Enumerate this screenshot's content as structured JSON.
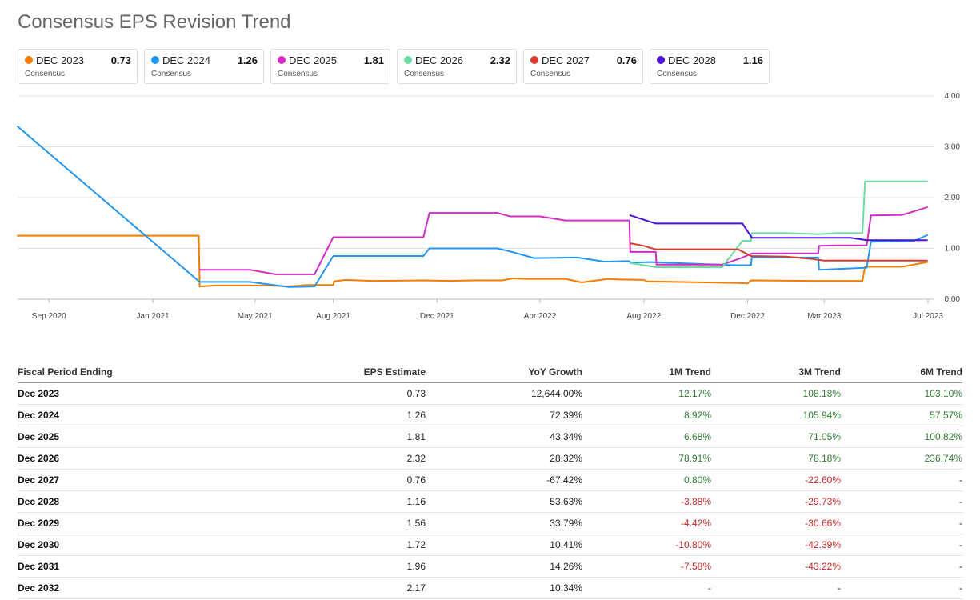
{
  "title": "Consensus EPS Revision Trend",
  "legend": [
    {
      "name": "DEC 2023",
      "value": "0.73",
      "sub": "Consensus",
      "color": "#f57c00"
    },
    {
      "name": "DEC 2024",
      "value": "1.26",
      "sub": "Consensus",
      "color": "#2196f3"
    },
    {
      "name": "DEC 2025",
      "value": "1.81",
      "sub": "Consensus",
      "color": "#d12cc5"
    },
    {
      "name": "DEC 2026",
      "value": "2.32",
      "sub": "Consensus",
      "color": "#6fdba1"
    },
    {
      "name": "DEC 2027",
      "value": "0.76",
      "sub": "Consensus",
      "color": "#d63c2f"
    },
    {
      "name": "DEC 2028",
      "value": "1.16",
      "sub": "Consensus",
      "color": "#4a10d8"
    }
  ],
  "chart_data": {
    "type": "line",
    "xlim": [
      "2020-07-26",
      "2023-07-01"
    ],
    "ylim": [
      0,
      4
    ],
    "yticks": [
      "0.00",
      "1.00",
      "2.00",
      "3.00",
      "4.00"
    ],
    "xticks": [
      {
        "label": "Sep 2020",
        "date": "2020-09-01"
      },
      {
        "label": "Jan 2021",
        "date": "2021-01-01"
      },
      {
        "label": "May 2021",
        "date": "2021-05-01"
      },
      {
        "label": "Aug 2021",
        "date": "2021-08-01"
      },
      {
        "label": "Dec 2021",
        "date": "2021-12-01"
      },
      {
        "label": "Apr 2022",
        "date": "2022-04-01"
      },
      {
        "label": "Aug 2022",
        "date": "2022-08-01"
      },
      {
        "label": "Dec 2022",
        "date": "2022-12-01"
      },
      {
        "label": "Mar 2023",
        "date": "2023-03-01"
      },
      {
        "label": "Jul 2023",
        "date": "2023-07-01"
      }
    ],
    "grid": true,
    "series": [
      {
        "name": "DEC 2023",
        "color": "#f57c00",
        "points": [
          [
            "2020-07-26",
            1.25
          ],
          [
            "2021-02-24",
            1.25
          ],
          [
            "2021-02-25",
            0.25
          ],
          [
            "2021-03-15",
            0.27
          ],
          [
            "2021-05-15",
            0.27
          ],
          [
            "2021-06-10",
            0.25
          ],
          [
            "2021-07-01",
            0.28
          ],
          [
            "2021-08-01",
            0.28
          ],
          [
            "2021-08-02",
            0.35
          ],
          [
            "2021-08-15",
            0.38
          ],
          [
            "2021-09-15",
            0.36
          ],
          [
            "2021-11-15",
            0.37
          ],
          [
            "2021-12-15",
            0.36
          ],
          [
            "2022-01-15",
            0.37
          ],
          [
            "2022-02-15",
            0.37
          ],
          [
            "2022-02-28",
            0.41
          ],
          [
            "2022-03-15",
            0.4
          ],
          [
            "2022-05-01",
            0.4
          ],
          [
            "2022-05-20",
            0.33
          ],
          [
            "2022-06-20",
            0.4
          ],
          [
            "2022-06-30",
            0.39
          ],
          [
            "2022-08-01",
            0.38
          ],
          [
            "2022-08-05",
            0.35
          ],
          [
            "2022-11-20",
            0.32
          ],
          [
            "2022-12-01",
            0.31
          ],
          [
            "2022-12-05",
            0.37
          ],
          [
            "2023-02-15",
            0.36
          ],
          [
            "2023-04-15",
            0.36
          ],
          [
            "2023-04-18",
            0.64
          ],
          [
            "2023-06-01",
            0.64
          ],
          [
            "2023-06-30",
            0.73
          ]
        ]
      },
      {
        "name": "DEC 2024",
        "color": "#2196f3",
        "points": [
          [
            "2020-07-26",
            3.4
          ],
          [
            "2021-02-25",
            0.34
          ],
          [
            "2021-04-25",
            0.34
          ],
          [
            "2021-06-10",
            0.24
          ],
          [
            "2021-07-10",
            0.25
          ],
          [
            "2021-08-01",
            0.85
          ],
          [
            "2021-11-15",
            0.85
          ],
          [
            "2021-11-22",
            1.0
          ],
          [
            "2022-02-10",
            1.0
          ],
          [
            "2022-02-25",
            0.94
          ],
          [
            "2022-03-25",
            0.81
          ],
          [
            "2022-05-15",
            0.82
          ],
          [
            "2022-06-15",
            0.74
          ],
          [
            "2022-07-15",
            0.75
          ],
          [
            "2022-07-16",
            0.72
          ],
          [
            "2022-08-10",
            0.73
          ],
          [
            "2022-11-15",
            0.67
          ],
          [
            "2022-12-05",
            0.67
          ],
          [
            "2022-12-06",
            0.82
          ],
          [
            "2023-02-22",
            0.82
          ],
          [
            "2023-02-23",
            0.58
          ],
          [
            "2023-04-20",
            0.62
          ],
          [
            "2023-04-25",
            1.13
          ],
          [
            "2023-06-15",
            1.15
          ],
          [
            "2023-06-30",
            1.26
          ]
        ]
      },
      {
        "name": "DEC 2025",
        "color": "#d12cc5",
        "points": [
          [
            "2021-02-25",
            0.58
          ],
          [
            "2021-04-25",
            0.58
          ],
          [
            "2021-05-25",
            0.49
          ],
          [
            "2021-07-10",
            0.49
          ],
          [
            "2021-08-01",
            1.22
          ],
          [
            "2021-11-15",
            1.22
          ],
          [
            "2021-11-22",
            1.7
          ],
          [
            "2022-02-10",
            1.7
          ],
          [
            "2022-02-25",
            1.63
          ],
          [
            "2022-03-10",
            1.63
          ],
          [
            "2022-04-01",
            1.63
          ],
          [
            "2022-05-01",
            1.55
          ],
          [
            "2022-07-15",
            1.55
          ],
          [
            "2022-07-16",
            0.93
          ],
          [
            "2022-08-15",
            0.93
          ],
          [
            "2022-08-16",
            0.68
          ],
          [
            "2022-11-01",
            0.68
          ],
          [
            "2022-11-25",
            0.82
          ],
          [
            "2022-12-06",
            0.9
          ],
          [
            "2023-02-22",
            0.9
          ],
          [
            "2023-02-23",
            1.05
          ],
          [
            "2023-03-15",
            1.06
          ],
          [
            "2023-04-20",
            1.06
          ],
          [
            "2023-04-25",
            1.65
          ],
          [
            "2023-06-01",
            1.66
          ],
          [
            "2023-06-30",
            1.81
          ]
        ]
      },
      {
        "name": "DEC 2026",
        "color": "#6fdba1",
        "points": [
          [
            "2022-07-16",
            0.71
          ],
          [
            "2022-08-01",
            0.67
          ],
          [
            "2022-08-15",
            0.63
          ],
          [
            "2022-11-01",
            0.63
          ],
          [
            "2022-11-25",
            1.15
          ],
          [
            "2022-12-05",
            1.15
          ],
          [
            "2022-12-06",
            1.3
          ],
          [
            "2023-01-15",
            1.3
          ],
          [
            "2023-02-22",
            1.28
          ],
          [
            "2023-03-15",
            1.3
          ],
          [
            "2023-04-15",
            1.3
          ],
          [
            "2023-04-18",
            2.32
          ],
          [
            "2023-06-30",
            2.32
          ]
        ]
      },
      {
        "name": "DEC 2027",
        "color": "#d63c2f",
        "points": [
          [
            "2022-07-16",
            1.1
          ],
          [
            "2022-08-01",
            1.05
          ],
          [
            "2022-08-15",
            0.98
          ],
          [
            "2022-11-20",
            0.98
          ],
          [
            "2022-12-05",
            0.85
          ],
          [
            "2023-01-15",
            0.84
          ],
          [
            "2023-02-15",
            0.79
          ],
          [
            "2023-03-01",
            0.76
          ],
          [
            "2023-06-30",
            0.76
          ]
        ]
      },
      {
        "name": "DEC 2028",
        "color": "#4a10d8",
        "points": [
          [
            "2022-07-16",
            1.65
          ],
          [
            "2022-08-15",
            1.49
          ],
          [
            "2022-11-25",
            1.49
          ],
          [
            "2022-12-06",
            1.21
          ],
          [
            "2023-04-01",
            1.21
          ],
          [
            "2023-04-20",
            1.16
          ],
          [
            "2023-06-30",
            1.16
          ]
        ]
      }
    ]
  },
  "table": {
    "headers": [
      "Fiscal Period Ending",
      "EPS Estimate",
      "YoY Growth",
      "1M Trend",
      "3M Trend",
      "6M Trend"
    ],
    "rows": [
      [
        "Dec 2023",
        "0.73",
        "12,644.00%",
        "12.17%",
        "108.18%",
        "103.10%"
      ],
      [
        "Dec 2024",
        "1.26",
        "72.39%",
        "8.92%",
        "105.94%",
        "57.57%"
      ],
      [
        "Dec 2025",
        "1.81",
        "43.34%",
        "6.68%",
        "71.05%",
        "100.82%"
      ],
      [
        "Dec 2026",
        "2.32",
        "28.32%",
        "78.91%",
        "78.18%",
        "236.74%"
      ],
      [
        "Dec 2027",
        "0.76",
        "-67.42%",
        "0.80%",
        "-22.60%",
        "-"
      ],
      [
        "Dec 2028",
        "1.16",
        "53.63%",
        "-3.88%",
        "-29.73%",
        "-"
      ],
      [
        "Dec 2029",
        "1.56",
        "33.79%",
        "-4.42%",
        "-30.66%",
        "-"
      ],
      [
        "Dec 2030",
        "1.72",
        "10.41%",
        "-10.80%",
        "-42.39%",
        "-"
      ],
      [
        "Dec 2031",
        "1.96",
        "14.26%",
        "-7.58%",
        "-43.22%",
        "-"
      ],
      [
        "Dec 2032",
        "2.17",
        "10.34%",
        "-",
        "-",
        "-"
      ]
    ]
  }
}
